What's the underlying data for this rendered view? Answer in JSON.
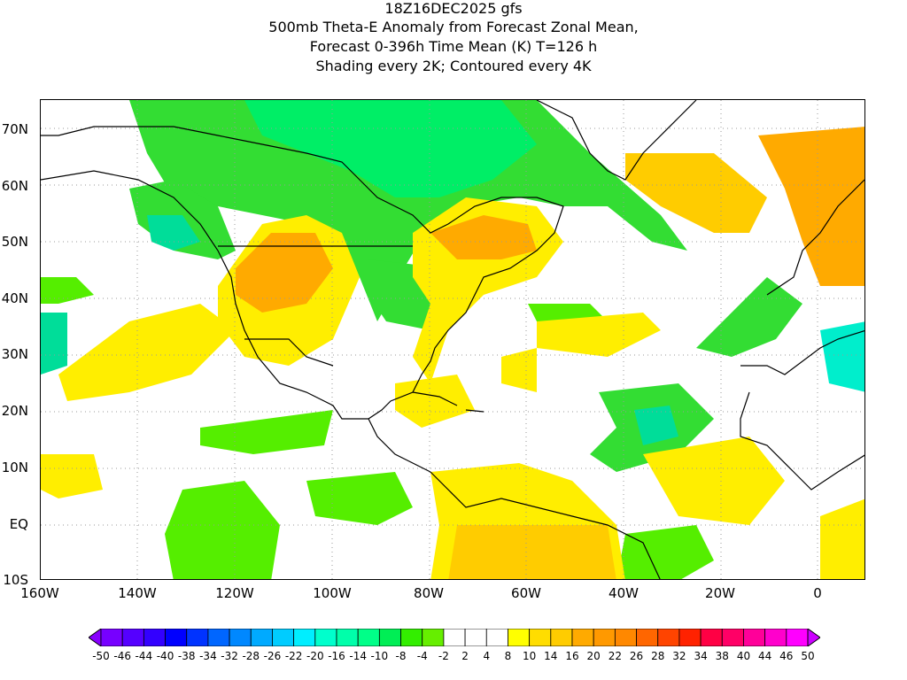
{
  "title": {
    "line1": "18Z16DEC2025 gfs",
    "line2": "500mb Theta-E Anomaly from Forecast Zonal Mean,",
    "line3": "Forecast 0-396h Time Mean (K) T=126 h",
    "line4": "Shading every 2K; Contoured every 4K"
  },
  "axes": {
    "x_ticks": [
      "160W",
      "140W",
      "120W",
      "100W",
      "80W",
      "60W",
      "40W",
      "20W",
      "0"
    ],
    "y_ticks": [
      "70N",
      "60N",
      "50N",
      "40N",
      "30N",
      "20N",
      "10N",
      "EQ",
      "10S"
    ]
  },
  "colorbar": {
    "labels": [
      "-50",
      "-46",
      "-44",
      "-40",
      "-38",
      "-34",
      "-32",
      "-28",
      "-26",
      "-22",
      "-20",
      "-16",
      "-14",
      "-10",
      "-8",
      "-4",
      "-2",
      "2",
      "4",
      "8",
      "10",
      "14",
      "16",
      "20",
      "22",
      "26",
      "28",
      "32",
      "34",
      "38",
      "40",
      "44",
      "46",
      "50"
    ],
    "colors": [
      "#8800ff",
      "#7700ff",
      "#5500ff",
      "#3300ff",
      "#0000ff",
      "#0033ff",
      "#0066ff",
      "#0088ff",
      "#00aaff",
      "#00ccff",
      "#00eeff",
      "#00ffcc",
      "#00ffaa",
      "#00ff88",
      "#00ee55",
      "#33ee00",
      "#66ee00",
      "#ffffff",
      "#ffffff",
      "#ffffff",
      "#ffff00",
      "#ffdd00",
      "#ffcc00",
      "#ffaa00",
      "#ff9900",
      "#ff8800",
      "#ff6600",
      "#ff4400",
      "#ff2200",
      "#ff0044",
      "#ff0066",
      "#ff0099",
      "#ff00cc",
      "#ff00ff",
      "#cc00ff"
    ]
  },
  "chart_data": {
    "type": "heatmap",
    "title": "500mb Theta-E Anomaly from Forecast Zonal Mean",
    "xlim": [
      -160,
      10
    ],
    "ylim": [
      -10,
      75
    ],
    "units": "K",
    "shading_interval": 2,
    "contour_interval": 4
  }
}
